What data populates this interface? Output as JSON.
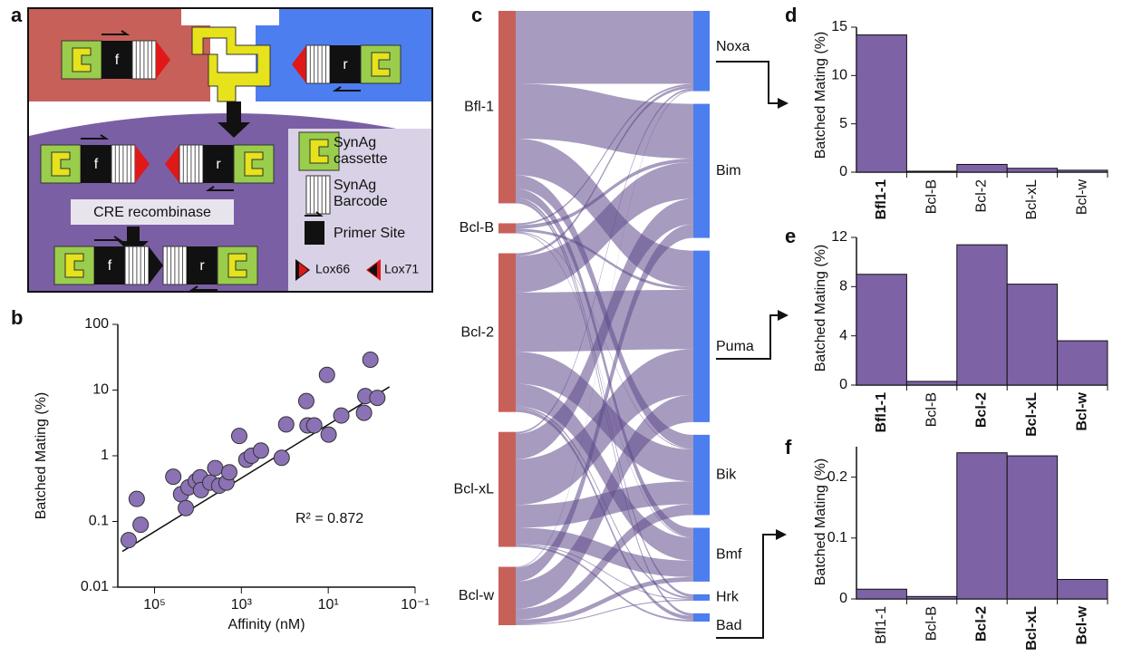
{
  "panel_labels": [
    "a",
    "b",
    "c",
    "d",
    "e",
    "f"
  ],
  "diagram": {
    "primer_labels": [
      "f",
      "r",
      "f",
      "r",
      "f",
      "r"
    ],
    "step": "CRE recombinase",
    "legend": [
      {
        "lines": [
          "SynAg",
          "cassette"
        ]
      },
      {
        "lines": [
          "SynAg",
          "Barcode"
        ]
      },
      {
        "lines": [
          "Primer Site"
        ]
      },
      {
        "lines": [
          "Lox66"
        ]
      },
      {
        "lines": [
          "Lox71"
        ]
      }
    ]
  },
  "chart_data": [
    {
      "type": "scatter",
      "x_label": "Affinity (nM)",
      "y_label": "Batched Mating (%)",
      "annotation": "R² = 0.872",
      "log_x": true,
      "log_y": true,
      "color": "#8b72b5",
      "x": [
        394000,
        257000,
        209000,
        37000,
        24500,
        19000,
        16500,
        11200,
        8900,
        8500,
        5200,
        4000,
        3250,
        2200,
        1900,
        1120,
        770,
        580,
        355,
        118,
        93,
        32,
        30,
        21,
        10.7,
        9.8,
        5,
        1.5,
        1.4,
        1.07,
        0.74
      ],
      "y": [
        0.052,
        0.22,
        0.089,
        0.48,
        0.26,
        0.16,
        0.33,
        0.41,
        0.47,
        0.3,
        0.39,
        0.65,
        0.35,
        0.39,
        0.56,
        2.0,
        0.87,
        1.0,
        1.2,
        0.93,
        3.0,
        6.8,
        2.9,
        2.9,
        17,
        2.1,
        4.1,
        4.5,
        8.1,
        29,
        7.6
      ],
      "fit": {
        "x": [
          550000,
          0.39
        ],
        "y": [
          0.035,
          11.2
        ]
      },
      "xlim": [
        700000,
        0.1
      ],
      "ylim": [
        0.01,
        100
      ],
      "xticks": [
        {
          "value": 100000,
          "label": "10⁵"
        },
        {
          "value": 1000,
          "label": "10³"
        },
        {
          "value": 10,
          "label": "10¹"
        },
        {
          "value": 0.1,
          "label": "10⁻¹"
        }
      ],
      "yticks": [
        100,
        10,
        1,
        0.1,
        0.01
      ]
    },
    {
      "type": "sankey",
      "sources": [
        "Bfl-1",
        "Bcl-B",
        "Bcl-2",
        "Bcl-xL",
        "Bcl-w"
      ],
      "targets": [
        "Noxa",
        "Bim",
        "Puma",
        "Bik",
        "Bmf",
        "Hrk",
        "Bad"
      ],
      "flows": [
        [
          80,
          60,
          40,
          15,
          10,
          3,
          3
        ],
        [
          2,
          4,
          3,
          1,
          1,
          0,
          0
        ],
        [
          3,
          40,
          65,
          35,
          25,
          2,
          4
        ],
        [
          2,
          28,
          50,
          25,
          18,
          1,
          2
        ],
        [
          1,
          15,
          30,
          12,
          5,
          1,
          0
        ]
      ],
      "source_color": "#c8605a",
      "target_color": "#4d7ef0",
      "link_color": "#5e4b8b"
    },
    {
      "type": "bar",
      "y_label": "Batched Mating (%)",
      "categories": [
        "Bfl1-1",
        "Bcl-B",
        "Bcl-2",
        "Bcl-xL",
        "Bcl-w"
      ],
      "bold": [
        true,
        false,
        false,
        false,
        false
      ],
      "values": [
        14.2,
        0.1,
        0.8,
        0.4,
        0.2
      ],
      "color": "#7d62a6",
      "ylim": [
        0,
        15
      ],
      "yticks": [
        0,
        5,
        10,
        15
      ]
    },
    {
      "type": "bar",
      "y_label": "Batched Mating (%)",
      "categories": [
        "Bfl1-1",
        "Bcl-B",
        "Bcl-2",
        "Bcl-xL",
        "Bcl-w"
      ],
      "bold": [
        true,
        false,
        true,
        true,
        true
      ],
      "values": [
        9.0,
        0.3,
        11.4,
        8.2,
        3.6
      ],
      "color": "#7d62a6",
      "ylim": [
        0,
        12
      ],
      "yticks": [
        0,
        4,
        8,
        12
      ]
    },
    {
      "type": "bar",
      "y_label": "Batched Mating (%)",
      "categories": [
        "Bfl1-1",
        "Bcl-B",
        "Bcl-2",
        "Bcl-xL",
        "Bcl-w"
      ],
      "bold": [
        false,
        false,
        true,
        true,
        true
      ],
      "values": [
        0.016,
        0.004,
        0.24,
        0.235,
        0.032
      ],
      "color": "#7d62a6",
      "ylim": [
        0,
        0.25
      ],
      "yticks": [
        0,
        0.1,
        0.2
      ]
    }
  ]
}
